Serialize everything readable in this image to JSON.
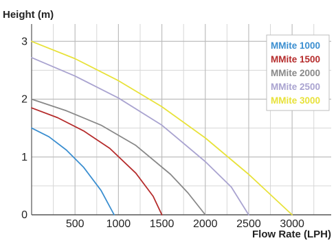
{
  "chart_data": {
    "type": "line",
    "ylabel": "Height (m)",
    "xlabel": "Flow Rate (LPH)",
    "xlim": [
      0,
      3450
    ],
    "ylim": [
      0,
      3.3
    ],
    "x_ticks": [
      500,
      1000,
      1500,
      2000,
      2500,
      3000
    ],
    "y_ticks": [
      0,
      1,
      2,
      3
    ],
    "grid": true,
    "legend_position": "top-right",
    "series": [
      {
        "name": "MMite 1000",
        "color": "#3a8ed0",
        "points": [
          [
            0,
            1.5
          ],
          [
            200,
            1.35
          ],
          [
            400,
            1.12
          ],
          [
            600,
            0.82
          ],
          [
            800,
            0.42
          ],
          [
            950,
            0
          ]
        ]
      },
      {
        "name": "MMite 1500",
        "color": "#b52b2b",
        "points": [
          [
            0,
            1.85
          ],
          [
            300,
            1.68
          ],
          [
            600,
            1.45
          ],
          [
            900,
            1.15
          ],
          [
            1200,
            0.72
          ],
          [
            1400,
            0.32
          ],
          [
            1500,
            0
          ]
        ]
      },
      {
        "name": "MMite 2000",
        "color": "#888888",
        "points": [
          [
            0,
            2.0
          ],
          [
            400,
            1.8
          ],
          [
            800,
            1.55
          ],
          [
            1200,
            1.2
          ],
          [
            1600,
            0.7
          ],
          [
            1800,
            0.38
          ],
          [
            2000,
            0
          ]
        ]
      },
      {
        "name": "MMite 2500",
        "color": "#a9a3d0",
        "points": [
          [
            0,
            2.72
          ],
          [
            500,
            2.4
          ],
          [
            1000,
            2.02
          ],
          [
            1500,
            1.55
          ],
          [
            2000,
            0.92
          ],
          [
            2300,
            0.48
          ],
          [
            2500,
            0
          ]
        ]
      },
      {
        "name": "MMite 3000",
        "color": "#e8e23a",
        "points": [
          [
            0,
            3.0
          ],
          [
            500,
            2.7
          ],
          [
            1000,
            2.32
          ],
          [
            1500,
            1.87
          ],
          [
            2000,
            1.33
          ],
          [
            2500,
            0.7
          ],
          [
            3000,
            0
          ]
        ]
      }
    ]
  }
}
